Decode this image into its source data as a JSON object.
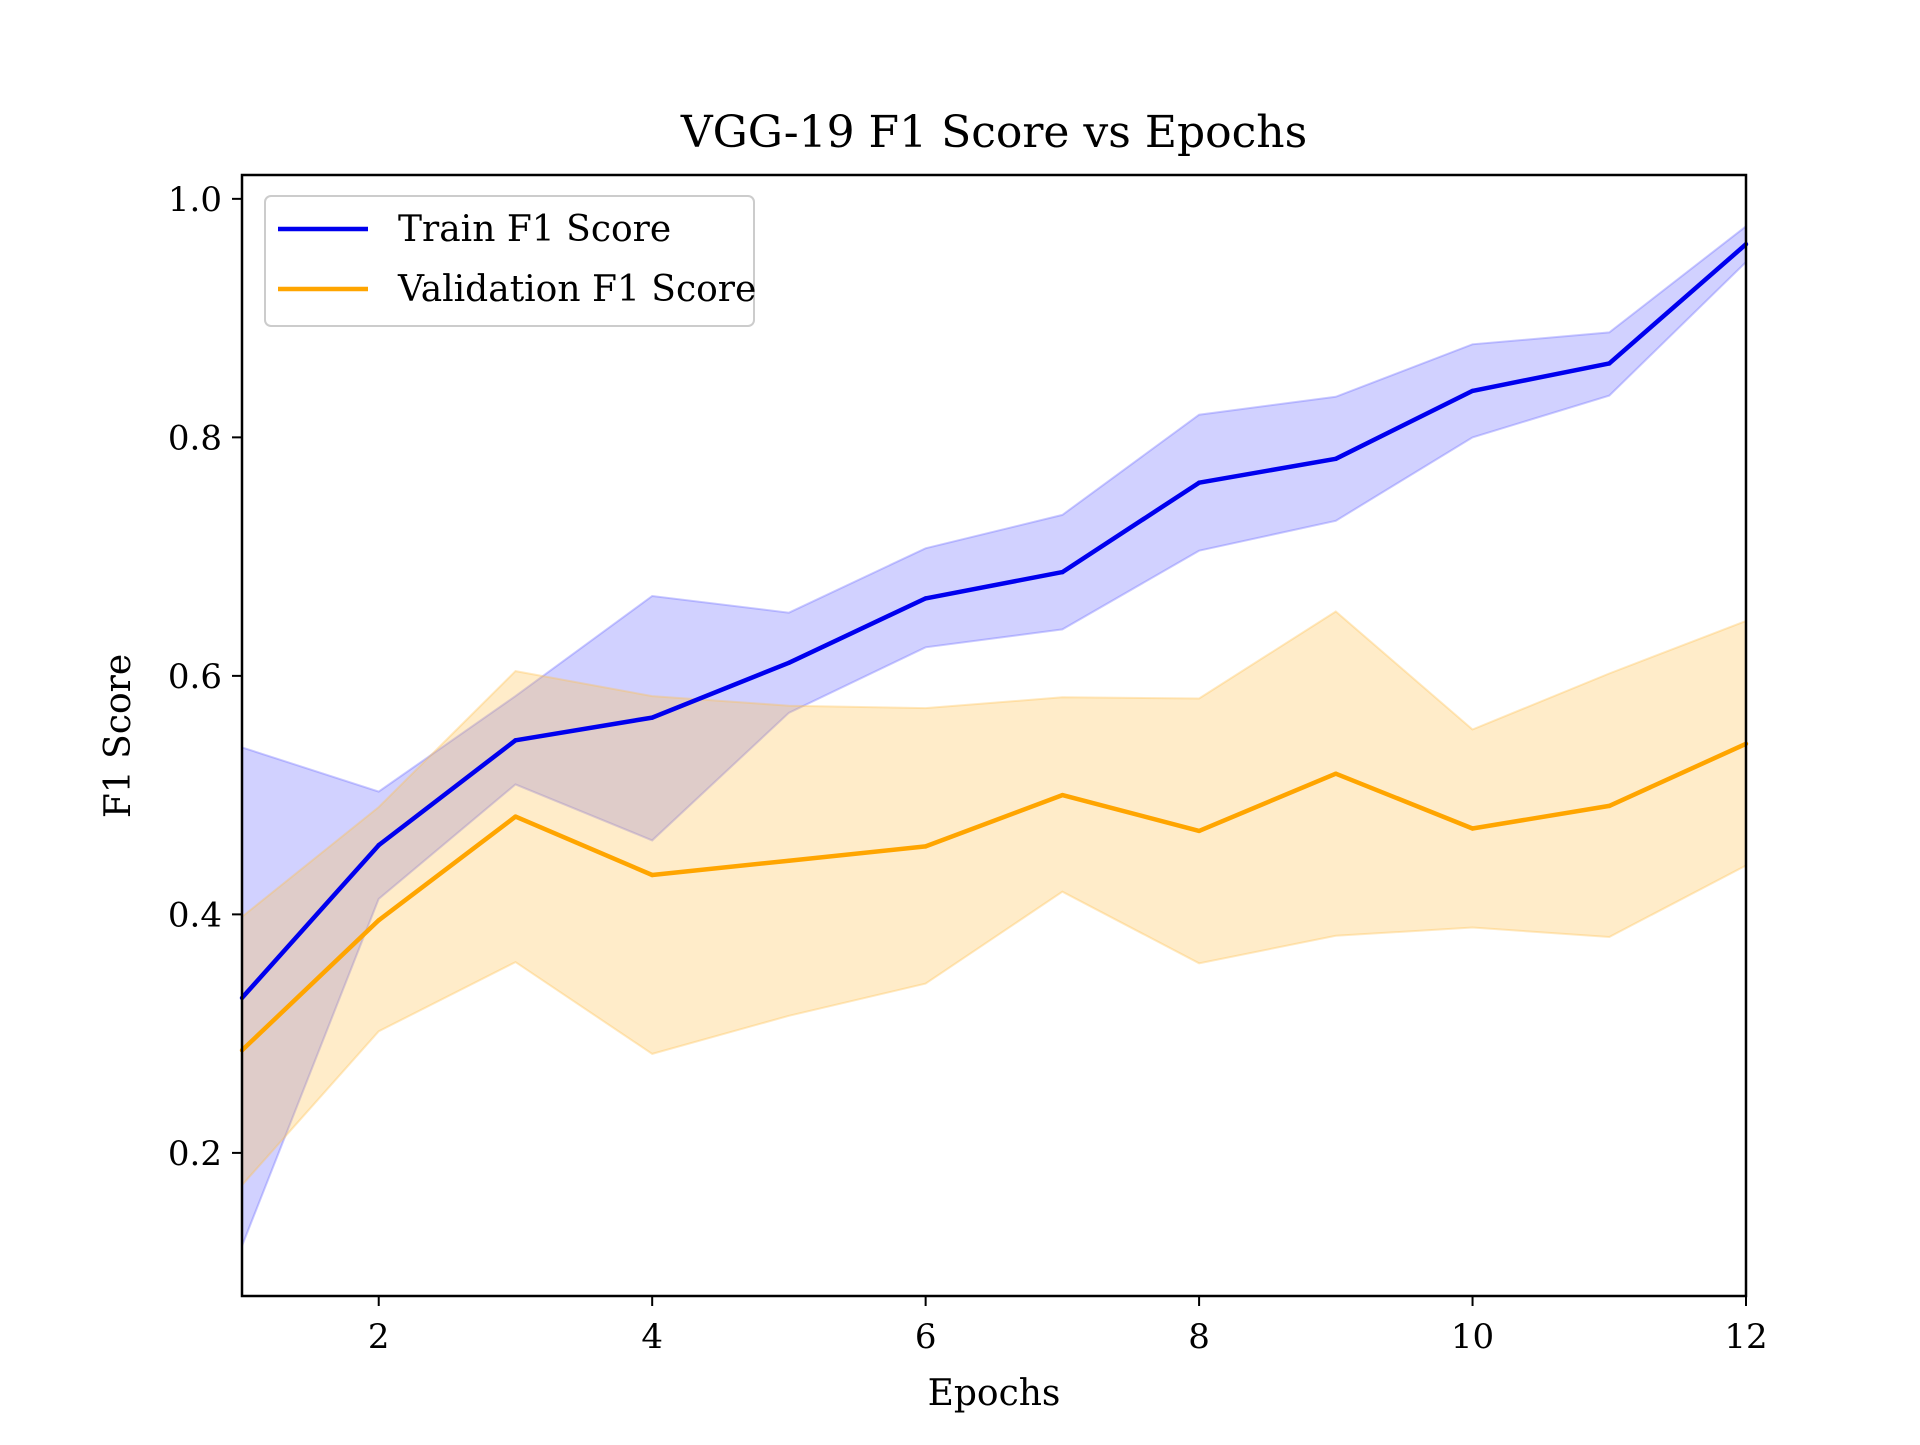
{
  "chart_data": {
    "type": "line",
    "title": "VGG-19 F1 Score vs Epochs",
    "xlabel": "Epochs",
    "ylabel": "F1 Score",
    "xlim": [
      1,
      12
    ],
    "ylim": [
      0.08,
      1.02
    ],
    "xticks": [
      2,
      4,
      6,
      8,
      10,
      12
    ],
    "yticks": [
      0.2,
      0.4,
      0.6,
      0.8,
      1.0
    ],
    "xtick_labels": [
      "2",
      "4",
      "6",
      "8",
      "10",
      "12"
    ],
    "ytick_labels": [
      "0.2",
      "0.4",
      "0.6",
      "0.8",
      "1.0"
    ],
    "grid": false,
    "legend_position": "upper-left",
    "x": [
      1,
      2,
      3,
      4,
      5,
      6,
      7,
      8,
      9,
      10,
      11,
      12
    ],
    "series": [
      {
        "name": "Train F1 Score",
        "color": "#0000ee",
        "band_color": "#6666ff",
        "values": [
          0.33,
          0.458,
          0.546,
          0.565,
          0.611,
          0.665,
          0.687,
          0.762,
          0.782,
          0.839,
          0.862,
          0.962
        ],
        "upper": [
          0.54,
          0.503,
          0.583,
          0.667,
          0.653,
          0.707,
          0.735,
          0.819,
          0.834,
          0.878,
          0.888,
          0.977
        ],
        "lower": [
          0.122,
          0.413,
          0.509,
          0.462,
          0.569,
          0.624,
          0.639,
          0.705,
          0.73,
          0.8,
          0.835,
          0.947
        ]
      },
      {
        "name": "Validation F1 Score",
        "color": "#ffa500",
        "band_color": "#ffc04d",
        "values": [
          0.286,
          0.395,
          0.482,
          0.433,
          0.445,
          0.457,
          0.5,
          0.47,
          0.518,
          0.472,
          0.491,
          0.543
        ],
        "upper": [
          0.398,
          0.49,
          0.604,
          0.583,
          0.575,
          0.573,
          0.582,
          0.581,
          0.654,
          0.555,
          0.602,
          0.646
        ],
        "lower": [
          0.173,
          0.302,
          0.36,
          0.283,
          0.315,
          0.342,
          0.419,
          0.359,
          0.382,
          0.389,
          0.381,
          0.441
        ]
      }
    ]
  }
}
